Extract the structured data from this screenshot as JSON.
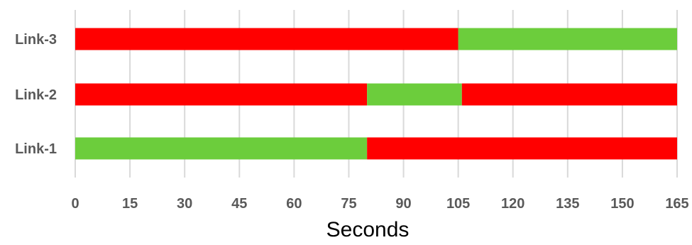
{
  "chart_data": {
    "type": "bar",
    "orientation": "horizontal",
    "stacked": true,
    "title": "",
    "xlabel": "Seconds",
    "ylabel": "",
    "xlim": [
      0,
      165
    ],
    "xticks": [
      0,
      15,
      30,
      45,
      60,
      75,
      90,
      105,
      120,
      135,
      150,
      165
    ],
    "grid": "vertical",
    "legend": "none",
    "categories": [
      "Link-3",
      "Link-2",
      "Link-1"
    ],
    "bars": [
      {
        "category": "Link-3",
        "segments": [
          {
            "start": 0,
            "end": 105,
            "color": "#ff0000"
          },
          {
            "start": 105,
            "end": 165,
            "color": "#6ccd3c"
          }
        ]
      },
      {
        "category": "Link-2",
        "segments": [
          {
            "start": 0,
            "end": 80,
            "color": "#ff0000"
          },
          {
            "start": 80,
            "end": 106,
            "color": "#6ccd3c"
          },
          {
            "start": 106,
            "end": 165,
            "color": "#ff0000"
          }
        ]
      },
      {
        "category": "Link-1",
        "segments": [
          {
            "start": 0,
            "end": 80,
            "color": "#6ccd3c"
          },
          {
            "start": 80,
            "end": 165,
            "color": "#ff0000"
          }
        ]
      }
    ],
    "colors": {
      "red": "#ff0000",
      "green": "#6ccd3c",
      "grid": "#d9d9d9"
    }
  }
}
